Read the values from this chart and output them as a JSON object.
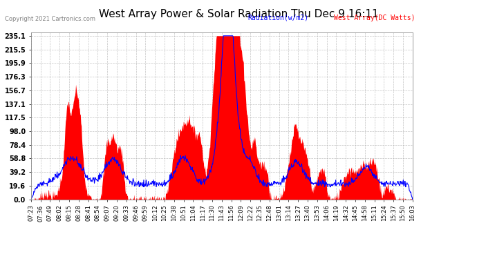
{
  "title": "West Array Power & Solar Radiation Thu Dec 9 16:11",
  "copyright": "Copyright 2021 Cartronics.com",
  "legend_radiation": "Radiation(w/m2)",
  "legend_west": "West Array(DC Watts)",
  "legend_radiation_color": "blue",
  "legend_west_color": "red",
  "yticks": [
    0.0,
    19.6,
    39.2,
    58.8,
    78.4,
    98.0,
    117.5,
    137.1,
    156.7,
    176.3,
    195.9,
    215.5,
    235.1
  ],
  "ymax": 240,
  "ymin": 0,
  "background_color": "#ffffff",
  "grid_color": "#aaaaaa",
  "fill_color": "red",
  "line_color": "blue",
  "x_label_fontsize": 6.0,
  "title_fontsize": 11,
  "xtick_labels": [
    "07:23",
    "07:36",
    "07:49",
    "08:02",
    "08:15",
    "08:28",
    "08:41",
    "08:54",
    "09:07",
    "09:20",
    "09:33",
    "09:46",
    "09:59",
    "10:12",
    "10:25",
    "10:38",
    "10:51",
    "11:04",
    "11:17",
    "11:30",
    "11:43",
    "11:56",
    "12:09",
    "12:22",
    "12:35",
    "12:48",
    "13:01",
    "13:14",
    "13:27",
    "13:40",
    "13:53",
    "14:06",
    "14:19",
    "14:32",
    "14:45",
    "14:58",
    "15:11",
    "15:24",
    "15:37",
    "15:50",
    "16:03"
  ]
}
